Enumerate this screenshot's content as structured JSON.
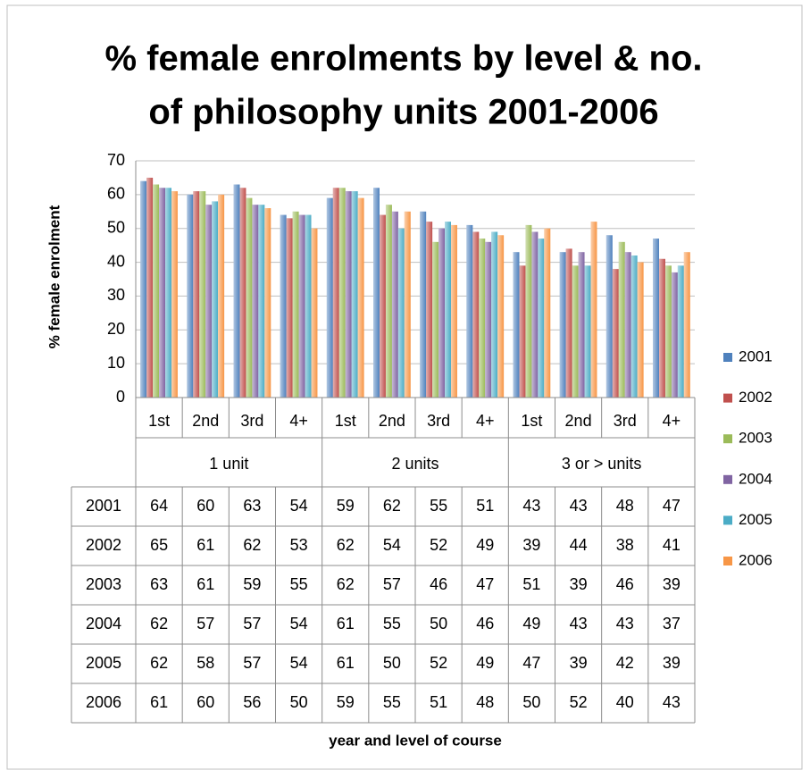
{
  "chart_data": {
    "type": "bar",
    "title": "% female enrolments by level & no. of philosophy units 2001-2006",
    "y_label": "% female enrolment",
    "x_label": "year and level of course",
    "categories": [
      "1st",
      "2nd",
      "3rd",
      "4+",
      "1st",
      "2nd",
      "3rd",
      "4+",
      "1st",
      "2nd",
      "3rd",
      "4+"
    ],
    "groups": [
      "1 unit",
      "2 units",
      "3 or > units"
    ],
    "series": [
      {
        "name": "2001",
        "color": "#4f81bd",
        "values": [
          64,
          60,
          63,
          54,
          59,
          62,
          55,
          51,
          43,
          43,
          48,
          47
        ]
      },
      {
        "name": "2002",
        "color": "#c0504d",
        "values": [
          65,
          61,
          62,
          53,
          62,
          54,
          52,
          49,
          39,
          44,
          38,
          41
        ]
      },
      {
        "name": "2003",
        "color": "#9bbb59",
        "values": [
          63,
          61,
          59,
          55,
          62,
          57,
          46,
          47,
          51,
          39,
          46,
          39
        ]
      },
      {
        "name": "2004",
        "color": "#8064a2",
        "values": [
          62,
          57,
          57,
          54,
          61,
          55,
          50,
          46,
          49,
          43,
          43,
          37
        ]
      },
      {
        "name": "2005",
        "color": "#4bacc6",
        "values": [
          62,
          58,
          57,
          54,
          61,
          50,
          52,
          49,
          47,
          39,
          42,
          39
        ]
      },
      {
        "name": "2006",
        "color": "#f79646",
        "values": [
          61,
          60,
          56,
          50,
          59,
          55,
          51,
          48,
          50,
          52,
          40,
          43
        ]
      }
    ],
    "ylim": [
      0,
      70
    ],
    "yticks": [
      0,
      10,
      20,
      30,
      40,
      50,
      60,
      70
    ],
    "grid": true,
    "legend": "right",
    "data_table": true
  }
}
